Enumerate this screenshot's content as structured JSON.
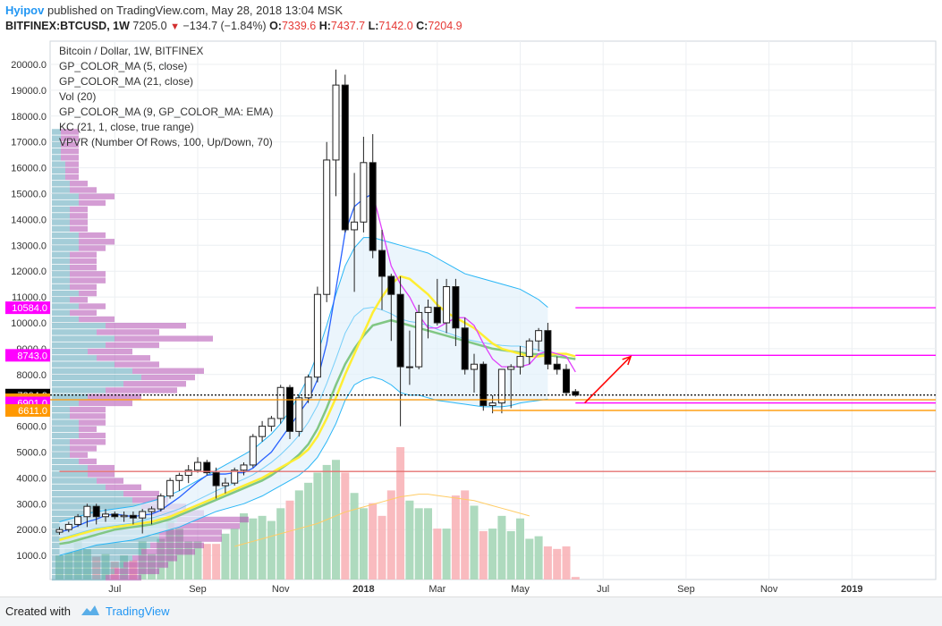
{
  "header": {
    "author": "Hyipov",
    "published_text": "published on TradingView.com, May 28, 2018 13:04 MSK",
    "symbol": "BITFINEX:BTCUSD, 1W",
    "last_price": "7205.0",
    "change_arrow": "▼",
    "change": "−134.7 (−1.84%)",
    "o_label": "O:",
    "o_value": "7339.6",
    "h_label": "H:",
    "h_value": "7437.7",
    "l_label": "L:",
    "l_value": "7142.0",
    "c_label": "C:",
    "c_value": "7204.9"
  },
  "legend": [
    "Bitcoin / Dollar, 1W, BITFINEX",
    "GP_COLOR_MA (5, close)",
    "GP_COLOR_MA (21, close)",
    "Vol (20)",
    "GP_COLOR_MA (9, GP_COLOR_MA: EMA)",
    "KC (21, 1, close, true range)",
    "VPVR (Number Of Rows, 100, Up/Down, 70)"
  ],
  "footer": {
    "created_with": "Created with",
    "brand": "TradingView"
  },
  "colors": {
    "up_candle": "#ffffff",
    "down_candle": "#000000",
    "ma5": "#2962ff",
    "ma5_down": "#e040fb",
    "ma21": "#ffee33",
    "ema9": "#81c784",
    "kc": "#29b6f6",
    "vol_up": "#a5d6b7",
    "vol_down": "#f8b4b8",
    "vol_ma": "#ffcc66",
    "price_level_magenta": "#ff00ff",
    "price_level_orange": "#ff9800",
    "arrow": "#ff0000",
    "support_red": "#e57373"
  },
  "chart_data": {
    "type": "candlestick",
    "title": "Bitcoin / Dollar, 1W, BITFINEX",
    "ylim": [
      0,
      20500
    ],
    "y_ticks": [
      1000,
      2000,
      3000,
      4000,
      5000,
      6000,
      7000,
      8000,
      9000,
      10000,
      11000,
      12000,
      13000,
      14000,
      15000,
      16000,
      17000,
      18000,
      19000,
      20000
    ],
    "y_tick_labels": [
      "1000.0",
      "2000.0",
      "3000.0",
      "4000.0",
      "5000.0",
      "6000.0",
      "7000.0",
      "8000.0",
      "9000.0",
      "10000.0",
      "11000.0",
      "12000.0",
      "13000.0",
      "14000.0",
      "15000.0",
      "16000.0",
      "17000.0",
      "18000.0",
      "19000.0",
      "20000.0"
    ],
    "x_tick_labels": [
      "Jul",
      "Sep",
      "Nov",
      "2018",
      "Mar",
      "May",
      "Jul",
      "Sep",
      "Nov",
      "2019"
    ],
    "x_tick_index": [
      6,
      15,
      24,
      33,
      41,
      50,
      59,
      68,
      77,
      86
    ],
    "candles": [
      [
        1900,
        2100,
        1800,
        2000
      ],
      [
        2000,
        2300,
        1900,
        2200
      ],
      [
        2200,
        2600,
        2100,
        2500
      ],
      [
        2500,
        3000,
        2100,
        2900
      ],
      [
        2900,
        3000,
        2200,
        2500
      ],
      [
        2500,
        2800,
        2300,
        2600
      ],
      [
        2600,
        2700,
        2400,
        2500
      ],
      [
        2500,
        2700,
        2300,
        2550
      ],
      [
        2550,
        2700,
        2200,
        2450
      ],
      [
        2450,
        2800,
        1850,
        2700
      ],
      [
        2700,
        2900,
        2200,
        2800
      ],
      [
        2800,
        3400,
        2700,
        3300
      ],
      [
        3300,
        4000,
        3200,
        3900
      ],
      [
        3900,
        4200,
        3500,
        4100
      ],
      [
        4100,
        4500,
        3800,
        4300
      ],
      [
        4300,
        4800,
        4200,
        4600
      ],
      [
        4600,
        4700,
        4100,
        4200
      ],
      [
        4200,
        4400,
        3200,
        3700
      ],
      [
        3700,
        4000,
        3400,
        3800
      ],
      [
        3800,
        4400,
        3700,
        4300
      ],
      [
        4300,
        4600,
        4100,
        4500
      ],
      [
        4500,
        5700,
        4400,
        5600
      ],
      [
        5600,
        6200,
        5400,
        6000
      ],
      [
        6000,
        6400,
        5800,
        6300
      ],
      [
        6300,
        7600,
        6100,
        7500
      ],
      [
        7500,
        7600,
        5500,
        5800
      ],
      [
        5800,
        7200,
        5600,
        7100
      ],
      [
        7100,
        8000,
        6900,
        7900
      ],
      [
        7900,
        11400,
        7700,
        11100
      ],
      [
        11100,
        17000,
        10800,
        16300
      ],
      [
        16300,
        19800,
        14900,
        19200
      ],
      [
        19200,
        19600,
        13500,
        13600
      ],
      [
        13600,
        15800,
        11200,
        13900
      ],
      [
        13900,
        17200,
        13500,
        16200
      ],
      [
        16200,
        17300,
        12500,
        12800
      ],
      [
        12800,
        13600,
        10500,
        11800
      ],
      [
        11800,
        11900,
        9300,
        11100
      ],
      [
        11100,
        11800,
        6000,
        8300
      ],
      [
        8300,
        9700,
        7600,
        8300
      ],
      [
        8300,
        10700,
        8200,
        10400
      ],
      [
        10400,
        10900,
        9400,
        10600
      ],
      [
        10600,
        11700,
        9900,
        10000
      ],
      [
        10000,
        11700,
        9600,
        11400
      ],
      [
        11400,
        11700,
        9100,
        9800
      ],
      [
        9800,
        10200,
        8000,
        8200
      ],
      [
        8200,
        8800,
        7300,
        8400
      ],
      [
        8400,
        8500,
        6600,
        6800
      ],
      [
        6800,
        7200,
        6500,
        6900
      ],
      [
        6900,
        8100,
        6500,
        8200
      ],
      [
        8200,
        8400,
        6700,
        8300
      ],
      [
        8300,
        9100,
        8000,
        8700
      ],
      [
        8700,
        9400,
        8400,
        9300
      ],
      [
        9300,
        9800,
        8900,
        9700
      ],
      [
        9700,
        10000,
        8200,
        8400
      ],
      [
        8400,
        8700,
        8000,
        8200
      ],
      [
        8200,
        8400,
        7200,
        7300
      ],
      [
        7339.6,
        7437.7,
        7142,
        7204.9
      ]
    ],
    "volume": [
      950,
      1200,
      1500,
      1200,
      900,
      1000,
      700,
      950,
      750,
      1500,
      1000,
      1600,
      2300,
      2000,
      1500,
      1500,
      1400,
      1400,
      1800,
      2000,
      2600,
      2400,
      2500,
      2300,
      2800,
      3100,
      3500,
      3800,
      4200,
      4500,
      4700,
      4200,
      3400,
      2800,
      3000,
      2500,
      3500,
      5200,
      3100,
      2800,
      2800,
      2000,
      2000,
      3300,
      3500,
      2900,
      1900,
      2000,
      2500,
      1900,
      2400,
      1600,
      1700,
      1300,
      1200,
      1300,
      100
    ],
    "ma5": [
      1900,
      2000,
      2150,
      2300,
      2400,
      2550,
      2600,
      2550,
      2500,
      2560,
      2600,
      2750,
      3000,
      3250,
      3550,
      3850,
      4100,
      4150,
      4150,
      4200,
      4200,
      4380,
      4700,
      5000,
      5500,
      6000,
      6500,
      7000,
      7800,
      9200,
      11300,
      13500,
      14500,
      14800,
      15000,
      13600,
      12200,
      11500,
      11000,
      10300,
      9800,
      9800,
      10000,
      10200,
      10200,
      9900,
      9200,
      8600,
      8300,
      8300,
      8300,
      8400,
      8800,
      8900,
      8800,
      8700,
      8100
    ],
    "ma21": [
      1600,
      1700,
      1800,
      1900,
      2000,
      2050,
      2100,
      2150,
      2200,
      2250,
      2300,
      2400,
      2500,
      2650,
      2800,
      2950,
      3100,
      3250,
      3400,
      3550,
      3700,
      3850,
      4000,
      4200,
      4400,
      4600,
      4800,
      5100,
      5600,
      6300,
      7100,
      8000,
      8800,
      9600,
      10400,
      11000,
      11500,
      11800,
      11700,
      11400,
      11100,
      10700,
      10400,
      10200,
      10000,
      9800,
      9500,
      9200,
      9000,
      8900,
      8800,
      8700,
      8700,
      8750,
      8800,
      8800,
      8700
    ],
    "ema9": [
      1450,
      1500,
      1600,
      1700,
      1800,
      1900,
      2000,
      2050,
      2100,
      2150,
      2200,
      2300,
      2400,
      2550,
      2700,
      2850,
      3000,
      3150,
      3300,
      3450,
      3600,
      3750,
      3900,
      4100,
      4350,
      4600,
      4900,
      5300,
      5900,
      6700,
      7600,
      8400,
      9000,
      9500,
      9900,
      10000,
      10100,
      10000,
      9900,
      9800,
      9700,
      9600,
      9500,
      9400,
      9300,
      9200,
      9100,
      9000,
      8950,
      8900,
      8850,
      8800,
      8780,
      8760,
      8700,
      8650,
      8600
    ],
    "kc_upper": [
      2300,
      2400,
      2500,
      2600,
      2700,
      2750,
      2800,
      2850,
      2900,
      3000,
      3100,
      3200,
      3350,
      3500,
      3700,
      3900,
      4100,
      4300,
      4500,
      4700,
      4900,
      5100,
      5400,
      5700,
      6100,
      6600,
      7200,
      7900,
      8800,
      9900,
      11100,
      12200,
      12900,
      13300,
      13300,
      13200,
      13100,
      13000,
      12900,
      12800,
      12700,
      12500,
      12300,
      12100,
      11900,
      11800,
      11700,
      11600,
      11500,
      11400,
      11300,
      11100,
      10900,
      10600
    ],
    "kc_lower": [
      1000,
      1100,
      1200,
      1300,
      1400,
      1450,
      1500,
      1550,
      1600,
      1700,
      1800,
      1900,
      2000,
      2100,
      2250,
      2400,
      2550,
      2700,
      2800,
      2900,
      3000,
      3150,
      3300,
      3500,
      3700,
      3900,
      4100,
      4400,
      4800,
      5400,
      6100,
      7000,
      7600,
      7800,
      7900,
      7800,
      7600,
      7300,
      7200,
      7200,
      7100,
      7000,
      6950,
      6900,
      6850,
      6800,
      6750,
      6750,
      6750,
      6800,
      6900,
      6950,
      7000,
      7050
    ],
    "vol_ma": [
      null,
      null,
      null,
      null,
      null,
      null,
      null,
      null,
      null,
      null,
      null,
      null,
      null,
      null,
      null,
      null,
      null,
      null,
      null,
      1300,
      1400,
      1500,
      1600,
      1700,
      1800,
      1900,
      2000,
      2100,
      2200,
      2350,
      2500,
      2650,
      2750,
      2850,
      2950,
      3050,
      3150,
      3250,
      3300,
      3350,
      3350,
      3300,
      3250,
      3200,
      3150,
      3100,
      3000,
      2900,
      2800,
      2700,
      2600,
      2500
    ],
    "vpvr_rows_step": 250,
    "vpvr_up": [
      60,
      70,
      80,
      90,
      100,
      110,
      120,
      120,
      130,
      140,
      110,
      100,
      90,
      80,
      60,
      50,
      40,
      40,
      30,
      20,
      20,
      20,
      30,
      30,
      30,
      20,
      20,
      30,
      40,
      60,
      80,
      100,
      90,
      70,
      50,
      40,
      60,
      70,
      50,
      60,
      30,
      20,
      30,
      20,
      30,
      20,
      20,
      20,
      20,
      20,
      20,
      30,
      30,
      30,
      20,
      20,
      20,
      20,
      30,
      30,
      20,
      20,
      15,
      15,
      15,
      10,
      10,
      10,
      10,
      10
    ],
    "vpvr_down": [
      40,
      50,
      50,
      50,
      60,
      60,
      70,
      70,
      80,
      80,
      60,
      50,
      40,
      40,
      40,
      30,
      30,
      30,
      20,
      20,
      30,
      40,
      30,
      20,
      30,
      40,
      40,
      60,
      60,
      80,
      70,
      60,
      80,
      50,
      60,
      50,
      60,
      110,
      70,
      90,
      40,
      30,
      30,
      20,
      20,
      30,
      40,
      40,
      30,
      30,
      30,
      30,
      40,
      30,
      20,
      20,
      20,
      20,
      30,
      40,
      30,
      20,
      15,
      15,
      15,
      20,
      20,
      20,
      20,
      20
    ],
    "price_levels": [
      {
        "value": 10584.0,
        "label": "10584.0",
        "color": "#ff00ff",
        "from_index": 56
      },
      {
        "value": 8743.0,
        "label": "8743.0",
        "color": "#ff00ff",
        "from_index": 56
      },
      {
        "value": 7204.9,
        "label": "7204.9",
        "color": "#000000",
        "dotted": true
      },
      {
        "value": 7023.9,
        "label": "7023.9",
        "color": "#ff9800"
      },
      {
        "value": 6901.0,
        "label": "6901.0",
        "color": "#ff00ff",
        "from_index": 56
      },
      {
        "value": 6611.0,
        "label": "6611.0",
        "color": "#ff9800",
        "from_index": 47
      },
      {
        "value": 4250,
        "color": "#e57373",
        "from_index": 0
      }
    ],
    "projection_arrow": {
      "from_index": 57,
      "from_value": 6900,
      "to_index": 62,
      "to_value": 8700
    }
  }
}
